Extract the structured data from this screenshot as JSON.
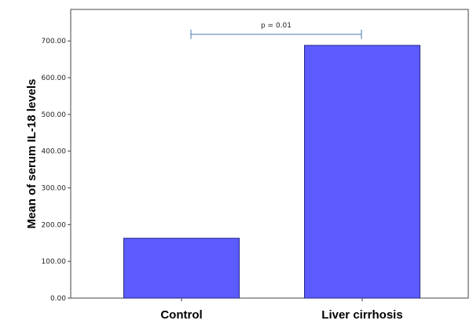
{
  "chart_data": {
    "type": "bar",
    "categories": [
      "Control",
      "Liver cirrhosis"
    ],
    "values": [
      163,
      688
    ],
    "title": "",
    "xlabel": "",
    "ylabel": "Mean of serum IL-18 levels",
    "ylim": [
      0,
      750
    ],
    "yticks": [
      0,
      100,
      200,
      300,
      400,
      500,
      600,
      700
    ],
    "ytick_labels": [
      "0.00",
      "100.00",
      "200.00",
      "300.00",
      "400.00",
      "500.00",
      "600.00",
      "700.00"
    ],
    "grid": false,
    "legend": "none",
    "annotation": {
      "text": "p = 0.01",
      "from_category": "Control",
      "to_category": "Liver cirrhosis",
      "y_value": 718
    },
    "colors": {
      "bar_fill": "#5b5bff",
      "bar_stroke": "#2a2a88",
      "axis": "#444444",
      "annotation": "#4a7aa8"
    }
  }
}
